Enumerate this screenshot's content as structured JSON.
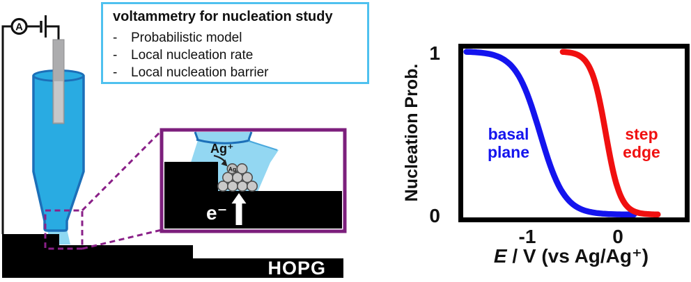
{
  "textbox": {
    "title": "voltammetry for nucleation study",
    "bullet": "-",
    "items": [
      "Probabilistic model",
      "Local nucleation rate",
      "Local nucleation barrier"
    ]
  },
  "circuit": {
    "ammeter_label": "A"
  },
  "substrate_label": "HOPG",
  "inset": {
    "ion_label": "Ag⁺",
    "cluster_label": "Ag",
    "electron_label": "e⁻"
  },
  "colors": {
    "pipette_fill": "#29abe2",
    "pipette_stroke": "#1c6fb8",
    "meniscus_fill": "#8ed8f2",
    "inset_liquid_fill": "#93d7f2",
    "inset_border": "#7c1f7c",
    "dash_purple": "#8a2088",
    "textbox_border": "#4fc1ef",
    "substrate": "#000000",
    "particle_fill": "#c9c9c9",
    "basal_blue": "#1414ee",
    "step_red": "#f01010"
  },
  "chart_data": {
    "type": "line",
    "title": "",
    "ylabel": "Nucleation Prob.",
    "xlabel_italic": "E",
    "xlabel_rest": " / V (vs Ag/Ag⁺)",
    "xlim": [
      -1.69,
      0.735
    ],
    "ylim": [
      0,
      1
    ],
    "grid": false,
    "legend_position": "inline-labels",
    "x_ticks": [
      {
        "value": -1,
        "label": "-1"
      },
      {
        "value": 0,
        "label": "0"
      }
    ],
    "y_ticks": [
      {
        "value": 1,
        "label": "1"
      },
      {
        "value": 0,
        "label": "0"
      }
    ],
    "series": [
      {
        "name": "basal plane",
        "label_lines": [
          "basal",
          "plane"
        ],
        "color": "#1414ee",
        "shape": "falling-sigmoid",
        "midpoint_V": -0.85,
        "steepness_V": 0.134,
        "v_start": -1.655,
        "v_end": 0.18,
        "points_V_prob": [
          [
            -1.6,
            1.0
          ],
          [
            -1.2,
            0.93
          ],
          [
            -1.0,
            0.75
          ],
          [
            -0.85,
            0.5
          ],
          [
            -0.7,
            0.25
          ],
          [
            -0.4,
            0.03
          ],
          [
            0.0,
            0.002
          ],
          [
            0.18,
            0.001
          ]
        ]
      },
      {
        "name": "step edge",
        "label_lines": [
          "step",
          "edge"
        ],
        "color": "#f01010",
        "shape": "falling-sigmoid",
        "midpoint_V": -0.13,
        "steepness_V": 0.08,
        "v_start": -0.6,
        "v_end": 0.44,
        "points_V_prob": [
          [
            -0.6,
            1.0
          ],
          [
            -0.3,
            0.89
          ],
          [
            -0.2,
            0.71
          ],
          [
            -0.13,
            0.5
          ],
          [
            -0.05,
            0.27
          ],
          [
            0.1,
            0.05
          ],
          [
            0.4,
            0.001
          ]
        ]
      }
    ]
  }
}
